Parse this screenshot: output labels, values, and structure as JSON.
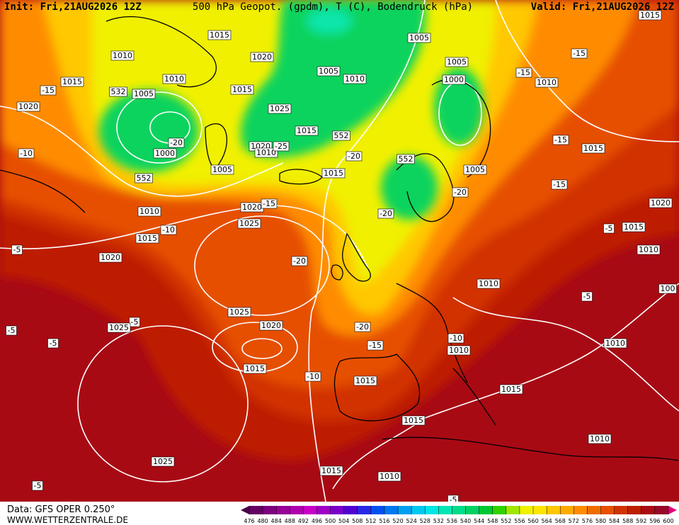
{
  "header": {
    "init": "Init: Fri,21AUG2026 12Z",
    "title": "500 hPa Geopot. (gpdm), T (C), Bodendruck (hPa)",
    "valid": "Valid: Fri,21AUG2026 12Z"
  },
  "footer": {
    "data_source": "Data: GFS OPER 0.250°",
    "website": "WWW.WETTERZENTRALE.DE"
  },
  "colorbar": {
    "ticks": [
      476,
      480,
      484,
      488,
      492,
      496,
      500,
      504,
      508,
      512,
      516,
      520,
      524,
      528,
      532,
      536,
      540,
      544,
      548,
      552,
      556,
      560,
      564,
      568,
      572,
      576,
      580,
      584,
      588,
      592,
      596,
      600
    ],
    "colors": [
      "#4a004a",
      "#640064",
      "#7d007d",
      "#960096",
      "#af00af",
      "#c800c8",
      "#a000c8",
      "#7800c8",
      "#5000d2",
      "#2828e6",
      "#0050f0",
      "#0078f0",
      "#00a0f0",
      "#00c8f0",
      "#00e6e6",
      "#00e6b4",
      "#00dc8c",
      "#00d264",
      "#00c832",
      "#30d200",
      "#a0e600",
      "#f0f000",
      "#ffe600",
      "#ffc800",
      "#ffaa00",
      "#ff8c00",
      "#f06e00",
      "#e65000",
      "#d23200",
      "#be1e00",
      "#aa0a14",
      "#960a28",
      "#e6007e"
    ]
  },
  "contour_labels": [
    "1015",
    "1010",
    "1020",
    "1005",
    "1005",
    "1015",
    "-15",
    "-15",
    "1010",
    "1015",
    "-15",
    "532",
    "1005",
    "1010",
    "1015",
    "1005",
    "1010",
    "1000",
    "1020",
    "1025",
    "1015",
    "552",
    "-20",
    "1000",
    "1020",
    "1010",
    "-25",
    "-10",
    "-15",
    "1015",
    "1005",
    "552",
    "1015",
    "-20",
    "552",
    "1005",
    "-20",
    "-15",
    "1010",
    "1020",
    "-15",
    "-20",
    "1020",
    "1025",
    "-10",
    "1015",
    "-5",
    "1015",
    "-5",
    "1020",
    "-20",
    "1010",
    "1010",
    "100",
    "-5",
    "1025",
    "-5",
    "1025",
    "1020",
    "-20",
    "-5",
    "-5",
    "-10",
    "1010",
    "-15",
    "1010",
    "1015",
    "-10",
    "1015",
    "1015",
    "1015",
    "1010",
    "1025",
    "1015",
    "1010",
    "-5",
    "-5"
  ]
}
